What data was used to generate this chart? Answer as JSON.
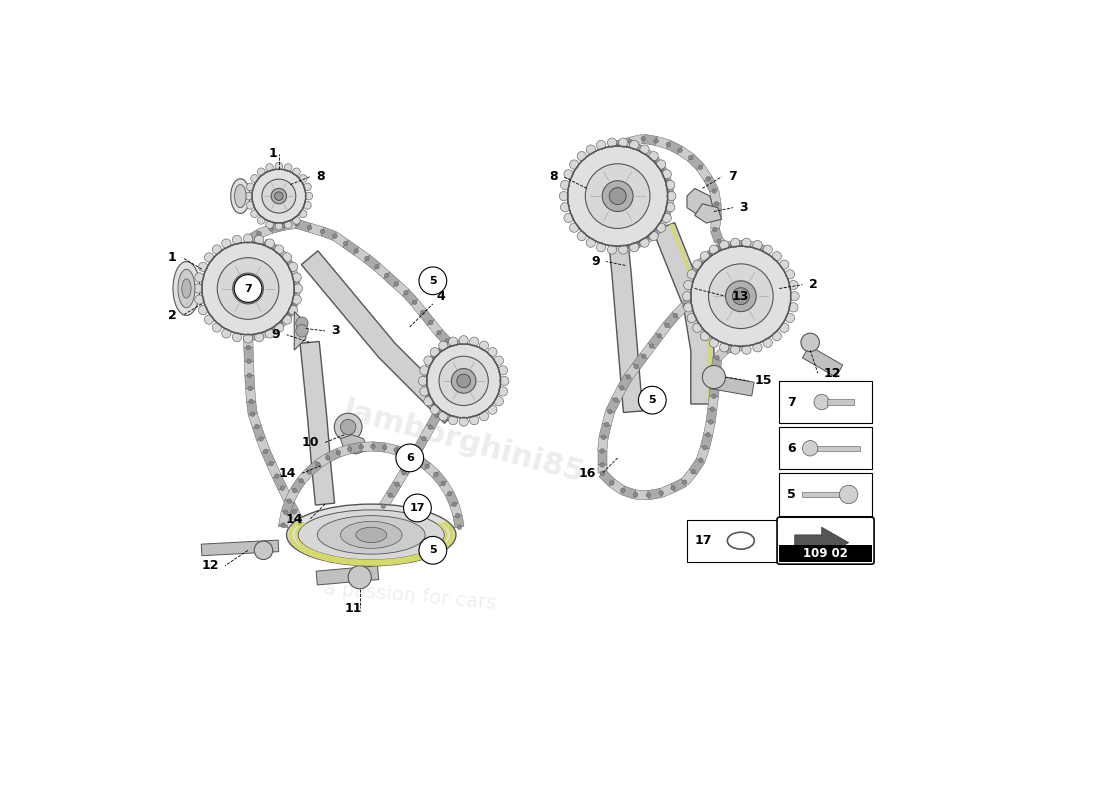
{
  "bg_color": "#ffffff",
  "part_number": "109 02",
  "watermark_text": "a passion for cars",
  "watermark_site": "lamborghini85",
  "accent_color": "#d4d96a",
  "chain_color": "#888888",
  "chain_edge": "#444444",
  "sprocket_outer": "#e0e0e0",
  "sprocket_inner": "#c8c8c8",
  "sprocket_hub": "#b0b0b0",
  "sprocket_edge": "#555555",
  "blade_color": "#cccccc",
  "blade_edge": "#555555",
  "callout_fontsize": 9,
  "label_fontsize": 8
}
